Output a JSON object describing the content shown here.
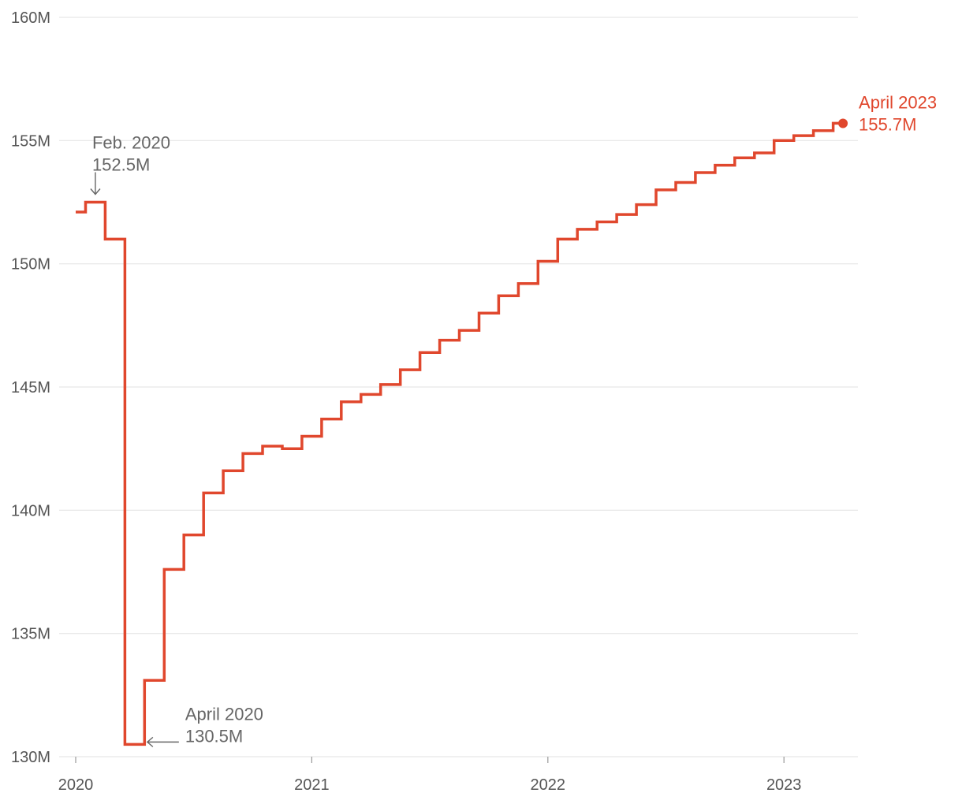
{
  "chart_data": {
    "type": "line",
    "step": true,
    "ylim": [
      130,
      160
    ],
    "yticks": [
      130,
      135,
      140,
      145,
      150,
      155,
      160
    ],
    "ytick_labels": [
      "130M",
      "135M",
      "140M",
      "145M",
      "150M",
      "155M",
      "160M"
    ],
    "xticks": [
      "2020-01",
      "2021-01",
      "2022-01",
      "2023-01"
    ],
    "xtick_labels": [
      "2020",
      "2021",
      "2022",
      "2023"
    ],
    "grid": true,
    "color": "#e0472d",
    "series": [
      {
        "x": [
          "2020-01",
          "2020-02",
          "2020-03",
          "2020-04",
          "2020-05",
          "2020-06",
          "2020-07",
          "2020-08",
          "2020-09",
          "2020-10",
          "2020-11",
          "2020-12",
          "2021-01",
          "2021-02",
          "2021-03",
          "2021-04",
          "2021-05",
          "2021-06",
          "2021-07",
          "2021-08",
          "2021-09",
          "2021-10",
          "2021-11",
          "2021-12",
          "2022-01",
          "2022-02",
          "2022-03",
          "2022-04",
          "2022-05",
          "2022-06",
          "2022-07",
          "2022-08",
          "2022-09",
          "2022-10",
          "2022-11",
          "2022-12",
          "2023-01",
          "2023-02",
          "2023-03",
          "2023-04"
        ],
        "values": [
          152.1,
          152.5,
          151.0,
          130.5,
          133.1,
          137.6,
          139.0,
          140.7,
          141.6,
          142.3,
          142.6,
          142.5,
          143.0,
          143.7,
          144.4,
          144.7,
          145.1,
          145.7,
          146.4,
          146.9,
          147.3,
          148.0,
          148.7,
          149.2,
          150.1,
          151.0,
          151.4,
          151.7,
          152.0,
          152.4,
          153.0,
          153.3,
          153.7,
          154.0,
          154.3,
          154.5,
          155.0,
          155.2,
          155.4,
          155.7
        ]
      }
    ],
    "annotations": [
      {
        "date": "2020-02",
        "value": 152.5,
        "line1": "Feb. 2020",
        "line2": "152.5M",
        "arrow": "down"
      },
      {
        "date": "2020-04",
        "value": 130.5,
        "line1": "April 2020",
        "line2": "130.5M",
        "arrow": "left"
      }
    ],
    "end_label": {
      "date": "2023-04",
      "value": 155.7,
      "line1": "April 2023",
      "line2": "155.7M"
    }
  }
}
